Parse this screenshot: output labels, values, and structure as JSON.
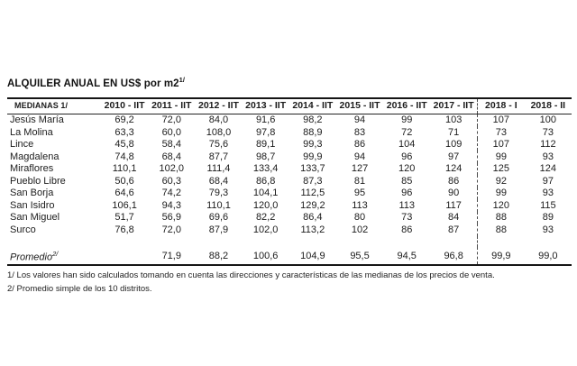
{
  "chart_data": {
    "type": "table",
    "title": "ALQUILER ANUAL EN US$ por m2",
    "title_sup": "1/",
    "row_header_label": "MEDIANAS 1/",
    "columns": [
      "2010 - IIT",
      "2011 - IIT",
      "2012 - IIT",
      "2013 - IIT",
      "2014 - IIT",
      "2015 - IIT",
      "2016 - IIT",
      "2017 - IIT",
      "2018 - I",
      "2018 - II"
    ],
    "rows": [
      {
        "district": "Jesús María",
        "values": [
          "69,2",
          "72,0",
          "84,0",
          "91,6",
          "98,2",
          "94",
          "99",
          "103",
          "107",
          "100"
        ]
      },
      {
        "district": "La Molina",
        "values": [
          "63,3",
          "60,0",
          "108,0",
          "97,8",
          "88,9",
          "83",
          "72",
          "71",
          "73",
          "73"
        ]
      },
      {
        "district": "Lince",
        "values": [
          "45,8",
          "58,4",
          "75,6",
          "89,1",
          "99,3",
          "86",
          "104",
          "109",
          "107",
          "112"
        ]
      },
      {
        "district": "Magdalena",
        "values": [
          "74,8",
          "68,4",
          "87,7",
          "98,7",
          "99,9",
          "94",
          "96",
          "97",
          "99",
          "93"
        ]
      },
      {
        "district": "Miraflores",
        "values": [
          "110,1",
          "102,0",
          "111,4",
          "133,4",
          "133,7",
          "127",
          "120",
          "124",
          "125",
          "124"
        ]
      },
      {
        "district": "Pueblo Libre",
        "values": [
          "50,6",
          "60,3",
          "68,4",
          "86,8",
          "87,3",
          "81",
          "85",
          "86",
          "92",
          "97"
        ]
      },
      {
        "district": "San Borja",
        "values": [
          "64,6",
          "74,2",
          "79,3",
          "104,1",
          "112,5",
          "95",
          "96",
          "90",
          "99",
          "93"
        ]
      },
      {
        "district": "San Isidro",
        "values": [
          "106,1",
          "94,3",
          "110,1",
          "120,0",
          "129,2",
          "113",
          "113",
          "117",
          "120",
          "115"
        ]
      },
      {
        "district": "San Miguel",
        "values": [
          "51,7",
          "56,9",
          "69,6",
          "82,2",
          "86,4",
          "80",
          "73",
          "84",
          "88",
          "89"
        ]
      },
      {
        "district": "Surco",
        "values": [
          "76,8",
          "72,0",
          "87,9",
          "102,0",
          "113,2",
          "102",
          "86",
          "87",
          "88",
          "93"
        ]
      }
    ],
    "summary": {
      "label": "Promedio",
      "label_sup": "2/",
      "values": [
        "",
        "71,9",
        "88,2",
        "100,6",
        "104,9",
        "95,5",
        "94,5",
        "96,8",
        "99,9",
        "99,0"
      ]
    },
    "footnotes": [
      "1/ Los valores han sido calculados tomando en cuenta las direcciones y características de las medianas de los precios de venta.",
      "2/ Promedio simple de los 10 distritos."
    ],
    "layout": {
      "background": "#ffffff",
      "divider_after_column": "2017 - IIT",
      "divider_style": "dashed"
    }
  }
}
